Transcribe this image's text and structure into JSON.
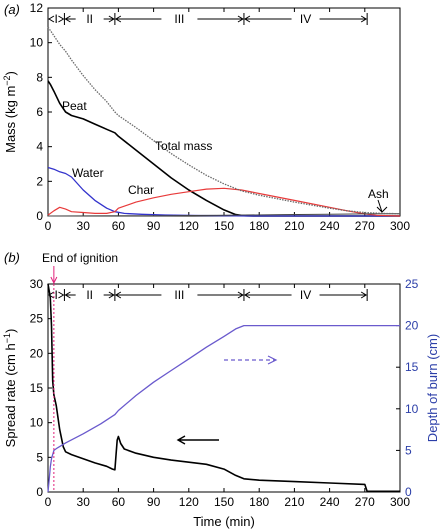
{
  "colors": {
    "peat": "#000000",
    "water": "#3333cc",
    "char": "#e83a3a",
    "ash": "#444444",
    "total": "#6a6a6a",
    "spread": "#000000",
    "depth": "#6a5acd",
    "ignition": "#e0207a",
    "right_axis": "#2b3ea8"
  },
  "chart_data": [
    {
      "type": "line",
      "panel": "(a)",
      "ylabel": "Mass (kg m⁻²)",
      "xlim": [
        0,
        300
      ],
      "ylim": [
        0,
        12
      ],
      "xticks": [
        0,
        30,
        60,
        90,
        120,
        150,
        180,
        210,
        240,
        270,
        300
      ],
      "yticks": [
        0,
        2,
        4,
        6,
        8,
        10,
        12
      ],
      "grid": false,
      "phases": [
        {
          "label": "I",
          "start": 0,
          "end": 14
        },
        {
          "label": "II",
          "start": 14,
          "end": 57
        },
        {
          "label": "III",
          "start": 57,
          "end": 167
        },
        {
          "label": "IV",
          "start": 167,
          "end": 272
        }
      ],
      "series": [
        {
          "name": "Peat",
          "points": [
            [
              0,
              7.8
            ],
            [
              2,
              7.6
            ],
            [
              5,
              7.2
            ],
            [
              10,
              6.5
            ],
            [
              15,
              6.0
            ],
            [
              20,
              5.8
            ],
            [
              30,
              5.6
            ],
            [
              40,
              5.3
            ],
            [
              50,
              5.0
            ],
            [
              57,
              4.8
            ],
            [
              60,
              4.6
            ],
            [
              75,
              3.8
            ],
            [
              90,
              3.0
            ],
            [
              105,
              2.2
            ],
            [
              120,
              1.5
            ],
            [
              135,
              0.9
            ],
            [
              150,
              0.35
            ],
            [
              160,
              0.08
            ],
            [
              167,
              0.02
            ],
            [
              175,
              0.0
            ],
            [
              300,
              0.0
            ]
          ]
        },
        {
          "name": "Water",
          "points": [
            [
              0,
              2.8
            ],
            [
              5,
              2.7
            ],
            [
              10,
              2.55
            ],
            [
              15,
              2.45
            ],
            [
              20,
              2.25
            ],
            [
              30,
              1.5
            ],
            [
              40,
              0.9
            ],
            [
              50,
              0.45
            ],
            [
              57,
              0.25
            ],
            [
              65,
              0.15
            ],
            [
              80,
              0.1
            ],
            [
              100,
              0.06
            ],
            [
              130,
              0.03
            ],
            [
              160,
              0.01
            ],
            [
              170,
              0.0
            ],
            [
              300,
              0.0
            ]
          ]
        },
        {
          "name": "Char",
          "points": [
            [
              0,
              0.05
            ],
            [
              5,
              0.3
            ],
            [
              10,
              0.5
            ],
            [
              15,
              0.4
            ],
            [
              20,
              0.25
            ],
            [
              30,
              0.2
            ],
            [
              40,
              0.15
            ],
            [
              50,
              0.15
            ],
            [
              57,
              0.25
            ],
            [
              60,
              0.45
            ],
            [
              75,
              0.8
            ],
            [
              90,
              1.05
            ],
            [
              105,
              1.25
            ],
            [
              120,
              1.4
            ],
            [
              135,
              1.55
            ],
            [
              150,
              1.6
            ],
            [
              165,
              1.5
            ],
            [
              180,
              1.3
            ],
            [
              210,
              0.9
            ],
            [
              240,
              0.5
            ],
            [
              255,
              0.3
            ],
            [
              270,
              0.12
            ],
            [
              280,
              0.04
            ],
            [
              300,
              0.0
            ]
          ]
        },
        {
          "name": "Ash",
          "points": [
            [
              0,
              0.0
            ],
            [
              60,
              0.01
            ],
            [
              100,
              0.02
            ],
            [
              150,
              0.04
            ],
            [
              200,
              0.08
            ],
            [
              240,
              0.1
            ],
            [
              270,
              0.12
            ],
            [
              300,
              0.13
            ]
          ]
        },
        {
          "name": "Total mass",
          "points": [
            [
              0,
              10.9
            ],
            [
              5,
              10.4
            ],
            [
              10,
              9.9
            ],
            [
              15,
              9.5
            ],
            [
              20,
              9.0
            ],
            [
              30,
              8.1
            ],
            [
              40,
              7.3
            ],
            [
              50,
              6.6
            ],
            [
              57,
              6.0
            ],
            [
              60,
              5.8
            ],
            [
              75,
              5.1
            ],
            [
              90,
              4.35
            ],
            [
              105,
              3.6
            ],
            [
              120,
              2.95
            ],
            [
              135,
              2.35
            ],
            [
              150,
              1.85
            ],
            [
              165,
              1.45
            ],
            [
              180,
              1.2
            ],
            [
              210,
              0.8
            ],
            [
              240,
              0.45
            ],
            [
              255,
              0.3
            ],
            [
              270,
              0.2
            ],
            [
              285,
              0.15
            ],
            [
              300,
              0.13
            ]
          ]
        }
      ],
      "annotations": [
        "Peat",
        "Water",
        "Char",
        "Total mass",
        "Ash"
      ]
    },
    {
      "type": "line",
      "panel": "(b)",
      "xlabel": "Time (min)",
      "ylabel": "Spread rate (cm h⁻¹)",
      "ylabel_right": "Depth of burn (cm)",
      "xlim": [
        0,
        300
      ],
      "ylim": [
        0,
        30
      ],
      "ylim_right": [
        0,
        25
      ],
      "xticks": [
        0,
        30,
        60,
        90,
        120,
        150,
        180,
        210,
        240,
        270,
        300
      ],
      "yticks": [
        0,
        5,
        10,
        15,
        20,
        25,
        30
      ],
      "yticks_right": [
        0,
        5,
        10,
        15,
        20,
        25
      ],
      "grid": false,
      "phases": [
        {
          "label": "I",
          "start": 0,
          "end": 14
        },
        {
          "label": "II",
          "start": 14,
          "end": 57
        },
        {
          "label": "III",
          "start": 57,
          "end": 167
        },
        {
          "label": "IV",
          "start": 167,
          "end": 272
        }
      ],
      "ignition_time": 5,
      "series": [
        {
          "name": "Spread rate",
          "axis": "left",
          "points": [
            [
              0,
              30
            ],
            [
              1,
              29
            ],
            [
              2,
              28
            ],
            [
              3,
              24
            ],
            [
              4,
              16
            ],
            [
              5,
              14
            ],
            [
              7,
              12.5
            ],
            [
              10,
              9
            ],
            [
              13,
              6.5
            ],
            [
              15,
              5.8
            ],
            [
              20,
              5.4
            ],
            [
              30,
              4.8
            ],
            [
              40,
              4.2
            ],
            [
              50,
              3.7
            ],
            [
              55,
              3.3
            ],
            [
              57,
              3.2
            ],
            [
              58,
              5.5
            ],
            [
              59,
              7.5
            ],
            [
              60,
              8.0
            ],
            [
              62,
              7.0
            ],
            [
              65,
              6.2
            ],
            [
              75,
              5.6
            ],
            [
              90,
              5.0
            ],
            [
              105,
              4.6
            ],
            [
              120,
              4.3
            ],
            [
              135,
              4.0
            ],
            [
              150,
              3.3
            ],
            [
              160,
              2.4
            ],
            [
              167,
              1.9
            ],
            [
              180,
              1.7
            ],
            [
              210,
              1.5
            ],
            [
              240,
              1.3
            ],
            [
              270,
              1.1
            ],
            [
              272,
              0.1
            ],
            [
              300,
              0.1
            ]
          ]
        },
        {
          "name": "Depth of burn",
          "axis": "right",
          "points": [
            [
              0,
              0
            ],
            [
              1,
              1.5
            ],
            [
              2,
              3.0
            ],
            [
              3,
              4.0
            ],
            [
              5,
              5.0
            ],
            [
              8,
              5.3
            ],
            [
              15,
              5.9
            ],
            [
              30,
              7.0
            ],
            [
              45,
              8.2
            ],
            [
              57,
              9.3
            ],
            [
              60,
              9.8
            ],
            [
              75,
              11.6
            ],
            [
              90,
              13.2
            ],
            [
              105,
              14.6
            ],
            [
              120,
              16.0
            ],
            [
              135,
              17.4
            ],
            [
              150,
              18.7
            ],
            [
              160,
              19.6
            ],
            [
              167,
              20.0
            ],
            [
              300,
              20.0
            ]
          ]
        }
      ],
      "annotations": [
        "End of ignition"
      ]
    }
  ],
  "panel_a": {
    "letter": "(a)",
    "ylabel_main": "Mass (kg m",
    "ylabel_sup": "−2",
    "ylabel_end": ")",
    "labels": {
      "peat": "Peat",
      "water": "Water",
      "char": "Char",
      "total": "Total mass",
      "ash": "Ash"
    },
    "phases": [
      "I",
      "II",
      "III",
      "IV"
    ]
  },
  "panel_b": {
    "letter": "(b)",
    "ignition_label": "End of ignition",
    "ylabel_main": "Spread rate (cm h",
    "ylabel_sup": "−1",
    "ylabel_end": ")",
    "ylabel_right": "Depth of burn (cm)",
    "xlabel": "Time (min)",
    "phases": [
      "I",
      "II",
      "III",
      "IV"
    ]
  }
}
